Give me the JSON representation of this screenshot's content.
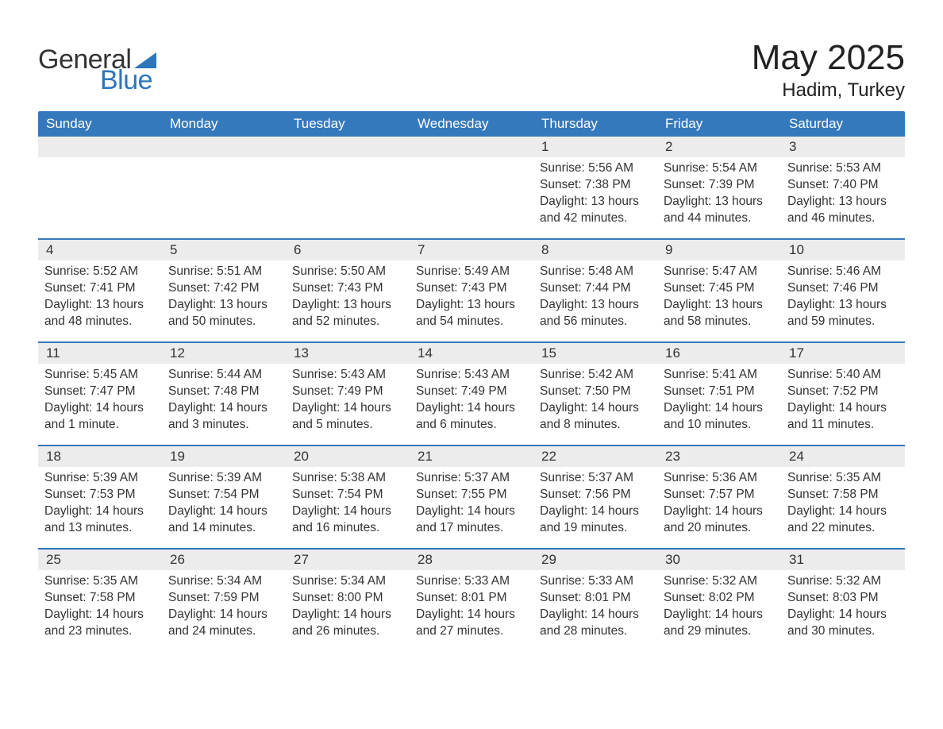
{
  "logo": {
    "text1": "General",
    "text2": "Blue",
    "tri_color": "#2d76bb"
  },
  "title": "May 2025",
  "location": "Hadim, Turkey",
  "colors": {
    "header_bg": "#3579bd",
    "header_text": "#ffffff",
    "row_divider": "#3579bd",
    "daynum_bg": "#ececec",
    "text": "#333333",
    "page_bg": "#ffffff"
  },
  "weekdays": [
    "Sunday",
    "Monday",
    "Tuesday",
    "Wednesday",
    "Thursday",
    "Friday",
    "Saturday"
  ],
  "weeks": [
    [
      {
        "day": "",
        "sunrise": "",
        "sunset": "",
        "daylight": ""
      },
      {
        "day": "",
        "sunrise": "",
        "sunset": "",
        "daylight": ""
      },
      {
        "day": "",
        "sunrise": "",
        "sunset": "",
        "daylight": ""
      },
      {
        "day": "",
        "sunrise": "",
        "sunset": "",
        "daylight": ""
      },
      {
        "day": "1",
        "sunrise": "Sunrise: 5:56 AM",
        "sunset": "Sunset: 7:38 PM",
        "daylight": "Daylight: 13 hours and 42 minutes."
      },
      {
        "day": "2",
        "sunrise": "Sunrise: 5:54 AM",
        "sunset": "Sunset: 7:39 PM",
        "daylight": "Daylight: 13 hours and 44 minutes."
      },
      {
        "day": "3",
        "sunrise": "Sunrise: 5:53 AM",
        "sunset": "Sunset: 7:40 PM",
        "daylight": "Daylight: 13 hours and 46 minutes."
      }
    ],
    [
      {
        "day": "4",
        "sunrise": "Sunrise: 5:52 AM",
        "sunset": "Sunset: 7:41 PM",
        "daylight": "Daylight: 13 hours and 48 minutes."
      },
      {
        "day": "5",
        "sunrise": "Sunrise: 5:51 AM",
        "sunset": "Sunset: 7:42 PM",
        "daylight": "Daylight: 13 hours and 50 minutes."
      },
      {
        "day": "6",
        "sunrise": "Sunrise: 5:50 AM",
        "sunset": "Sunset: 7:43 PM",
        "daylight": "Daylight: 13 hours and 52 minutes."
      },
      {
        "day": "7",
        "sunrise": "Sunrise: 5:49 AM",
        "sunset": "Sunset: 7:43 PM",
        "daylight": "Daylight: 13 hours and 54 minutes."
      },
      {
        "day": "8",
        "sunrise": "Sunrise: 5:48 AM",
        "sunset": "Sunset: 7:44 PM",
        "daylight": "Daylight: 13 hours and 56 minutes."
      },
      {
        "day": "9",
        "sunrise": "Sunrise: 5:47 AM",
        "sunset": "Sunset: 7:45 PM",
        "daylight": "Daylight: 13 hours and 58 minutes."
      },
      {
        "day": "10",
        "sunrise": "Sunrise: 5:46 AM",
        "sunset": "Sunset: 7:46 PM",
        "daylight": "Daylight: 13 hours and 59 minutes."
      }
    ],
    [
      {
        "day": "11",
        "sunrise": "Sunrise: 5:45 AM",
        "sunset": "Sunset: 7:47 PM",
        "daylight": "Daylight: 14 hours and 1 minute."
      },
      {
        "day": "12",
        "sunrise": "Sunrise: 5:44 AM",
        "sunset": "Sunset: 7:48 PM",
        "daylight": "Daylight: 14 hours and 3 minutes."
      },
      {
        "day": "13",
        "sunrise": "Sunrise: 5:43 AM",
        "sunset": "Sunset: 7:49 PM",
        "daylight": "Daylight: 14 hours and 5 minutes."
      },
      {
        "day": "14",
        "sunrise": "Sunrise: 5:43 AM",
        "sunset": "Sunset: 7:49 PM",
        "daylight": "Daylight: 14 hours and 6 minutes."
      },
      {
        "day": "15",
        "sunrise": "Sunrise: 5:42 AM",
        "sunset": "Sunset: 7:50 PM",
        "daylight": "Daylight: 14 hours and 8 minutes."
      },
      {
        "day": "16",
        "sunrise": "Sunrise: 5:41 AM",
        "sunset": "Sunset: 7:51 PM",
        "daylight": "Daylight: 14 hours and 10 minutes."
      },
      {
        "day": "17",
        "sunrise": "Sunrise: 5:40 AM",
        "sunset": "Sunset: 7:52 PM",
        "daylight": "Daylight: 14 hours and 11 minutes."
      }
    ],
    [
      {
        "day": "18",
        "sunrise": "Sunrise: 5:39 AM",
        "sunset": "Sunset: 7:53 PM",
        "daylight": "Daylight: 14 hours and 13 minutes."
      },
      {
        "day": "19",
        "sunrise": "Sunrise: 5:39 AM",
        "sunset": "Sunset: 7:54 PM",
        "daylight": "Daylight: 14 hours and 14 minutes."
      },
      {
        "day": "20",
        "sunrise": "Sunrise: 5:38 AM",
        "sunset": "Sunset: 7:54 PM",
        "daylight": "Daylight: 14 hours and 16 minutes."
      },
      {
        "day": "21",
        "sunrise": "Sunrise: 5:37 AM",
        "sunset": "Sunset: 7:55 PM",
        "daylight": "Daylight: 14 hours and 17 minutes."
      },
      {
        "day": "22",
        "sunrise": "Sunrise: 5:37 AM",
        "sunset": "Sunset: 7:56 PM",
        "daylight": "Daylight: 14 hours and 19 minutes."
      },
      {
        "day": "23",
        "sunrise": "Sunrise: 5:36 AM",
        "sunset": "Sunset: 7:57 PM",
        "daylight": "Daylight: 14 hours and 20 minutes."
      },
      {
        "day": "24",
        "sunrise": "Sunrise: 5:35 AM",
        "sunset": "Sunset: 7:58 PM",
        "daylight": "Daylight: 14 hours and 22 minutes."
      }
    ],
    [
      {
        "day": "25",
        "sunrise": "Sunrise: 5:35 AM",
        "sunset": "Sunset: 7:58 PM",
        "daylight": "Daylight: 14 hours and 23 minutes."
      },
      {
        "day": "26",
        "sunrise": "Sunrise: 5:34 AM",
        "sunset": "Sunset: 7:59 PM",
        "daylight": "Daylight: 14 hours and 24 minutes."
      },
      {
        "day": "27",
        "sunrise": "Sunrise: 5:34 AM",
        "sunset": "Sunset: 8:00 PM",
        "daylight": "Daylight: 14 hours and 26 minutes."
      },
      {
        "day": "28",
        "sunrise": "Sunrise: 5:33 AM",
        "sunset": "Sunset: 8:01 PM",
        "daylight": "Daylight: 14 hours and 27 minutes."
      },
      {
        "day": "29",
        "sunrise": "Sunrise: 5:33 AM",
        "sunset": "Sunset: 8:01 PM",
        "daylight": "Daylight: 14 hours and 28 minutes."
      },
      {
        "day": "30",
        "sunrise": "Sunrise: 5:32 AM",
        "sunset": "Sunset: 8:02 PM",
        "daylight": "Daylight: 14 hours and 29 minutes."
      },
      {
        "day": "31",
        "sunrise": "Sunrise: 5:32 AM",
        "sunset": "Sunset: 8:03 PM",
        "daylight": "Daylight: 14 hours and 30 minutes."
      }
    ]
  ]
}
